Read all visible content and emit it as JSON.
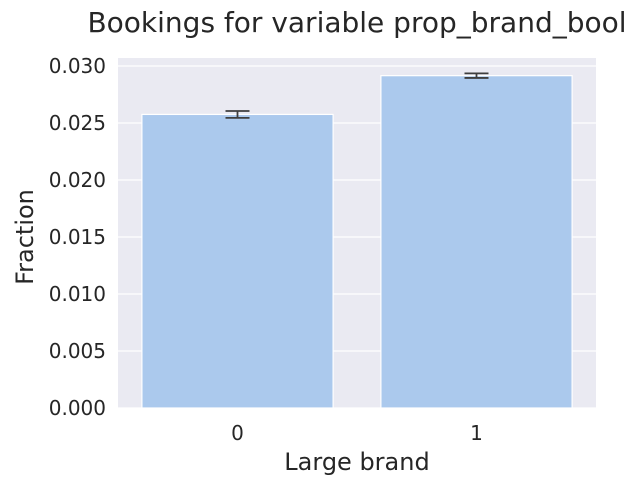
{
  "chart_data": {
    "type": "bar",
    "title": "Bookings for variable prop_brand_bool",
    "xlabel": "Large brand",
    "ylabel": "Fraction",
    "categories": [
      "0",
      "1"
    ],
    "values": [
      0.02575,
      0.02915
    ],
    "error_bars": [
      {
        "low": 0.02545,
        "high": 0.02605
      },
      {
        "low": 0.02895,
        "high": 0.02935
      }
    ],
    "ylim": [
      0,
      0.0307
    ],
    "yticks": [
      "0.000",
      "0.005",
      "0.010",
      "0.015",
      "0.020",
      "0.025",
      "0.030"
    ],
    "grid": true,
    "legend": "none",
    "colors": {
      "bar": "#abc9ed",
      "plot_background": "#eaeaf2",
      "grid": "#ffffff",
      "error_bar": "#3f3f3f",
      "text": "#262626"
    }
  }
}
